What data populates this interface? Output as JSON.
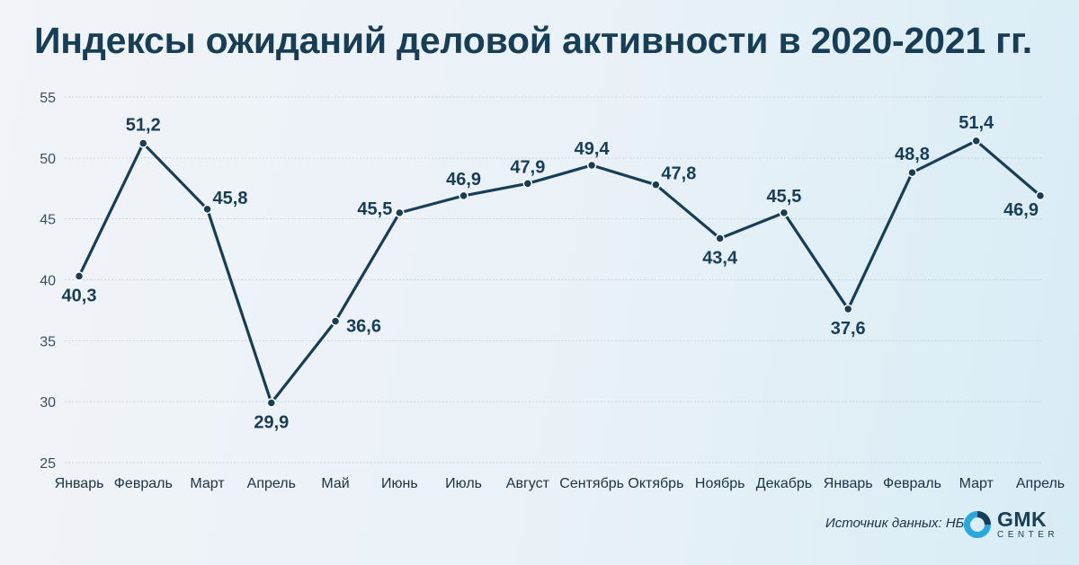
{
  "chart_data": {
    "type": "line",
    "title": "Индексы ожиданий деловой активности в 2020-2021 гг.",
    "xlabel": "",
    "ylabel": "",
    "categories": [
      "Январь",
      "Февраль",
      "Март",
      "Апрель",
      "Май",
      "Июнь",
      "Июль",
      "Август",
      "Сентябрь",
      "Октябрь",
      "Ноябрь",
      "Декабрь",
      "Январь",
      "Февраль",
      "Март",
      "Апрель"
    ],
    "series": [
      {
        "values": [
          40.3,
          51.2,
          45.8,
          29.9,
          36.6,
          45.5,
          46.9,
          47.9,
          49.4,
          47.8,
          43.4,
          45.5,
          37.6,
          48.8,
          51.4,
          46.9
        ],
        "data_labels": [
          "40,3",
          "51,2",
          "45,8",
          "29,9",
          "36,6",
          "45,5",
          "46,9",
          "47,9",
          "49,4",
          "47,8",
          "43,4",
          "45,5",
          "37,6",
          "48,8",
          "51,4",
          "46,9"
        ]
      }
    ],
    "y_ticks": [
      25,
      30,
      35,
      40,
      45,
      50,
      55
    ],
    "ylim": [
      25,
      55
    ],
    "grid": true,
    "line_color": "#173e57"
  },
  "source": "Источник данных: НБУ",
  "logo": {
    "main": "GMK",
    "sub": "CENTER",
    "icon": "gmk-center-logo-icon",
    "colors": {
      "ring": "#2aa8de",
      "accent": "#173e57"
    }
  }
}
